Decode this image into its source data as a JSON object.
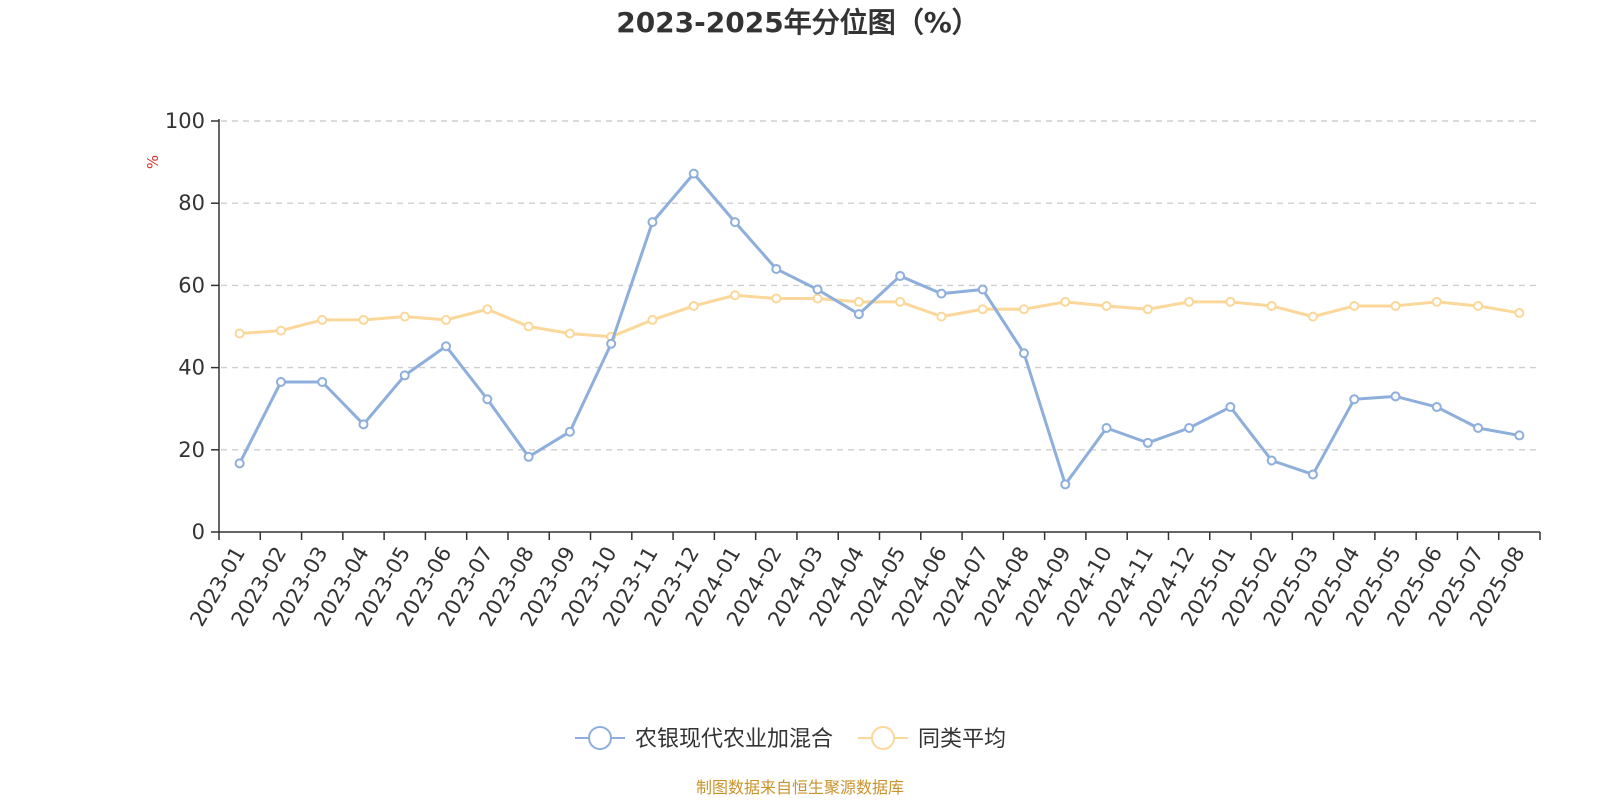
{
  "chart_data": {
    "type": "line",
    "title": "2023-2025年分位图（%）",
    "ylabel": "%",
    "ylim": [
      0,
      100
    ],
    "yticks": [
      0,
      20,
      40,
      60,
      80,
      100
    ],
    "grid": true,
    "legend_position": "bottom",
    "categories": [
      "2023-01",
      "2023-02",
      "2023-03",
      "2023-04",
      "2023-05",
      "2023-06",
      "2023-07",
      "2023-08",
      "2023-09",
      "2023-10",
      "2023-11",
      "2023-12",
      "2024-01",
      "2024-02",
      "2024-03",
      "2024-04",
      "2024-05",
      "2024-06",
      "2024-07",
      "2024-08",
      "2024-09",
      "2024-10",
      "2024-11",
      "2024-12",
      "2025-01",
      "2025-02",
      "2025-03",
      "2025-04",
      "2025-05",
      "2025-06",
      "2025-07",
      "2025-08"
    ],
    "series": [
      {
        "name": "农银现代农业加混合",
        "color": "#8eaedc",
        "values": [
          16.7,
          36.5,
          36.5,
          26.2,
          38.1,
          45.2,
          32.3,
          18.3,
          24.4,
          45.8,
          75.4,
          87.2,
          75.4,
          64.0,
          59.0,
          53.0,
          62.3,
          58.0,
          59.0,
          43.5,
          11.6,
          25.3,
          21.7,
          25.3,
          30.4,
          17.4,
          14.0,
          32.3,
          33.0,
          30.4,
          25.3,
          23.5
        ]
      },
      {
        "name": "同类平均",
        "color": "#fbd89a",
        "values": [
          48.3,
          49.0,
          51.6,
          51.6,
          52.4,
          51.6,
          54.2,
          50.0,
          48.3,
          47.5,
          51.6,
          55.0,
          57.6,
          56.8,
          56.8,
          56.0,
          56.0,
          52.4,
          54.2,
          54.2,
          56.0,
          55.0,
          54.2,
          56.0,
          56.0,
          55.0,
          52.4,
          55.0,
          55.0,
          56.0,
          55.0,
          53.3
        ]
      }
    ]
  },
  "source_note": "制图数据来自恒生聚源数据库"
}
